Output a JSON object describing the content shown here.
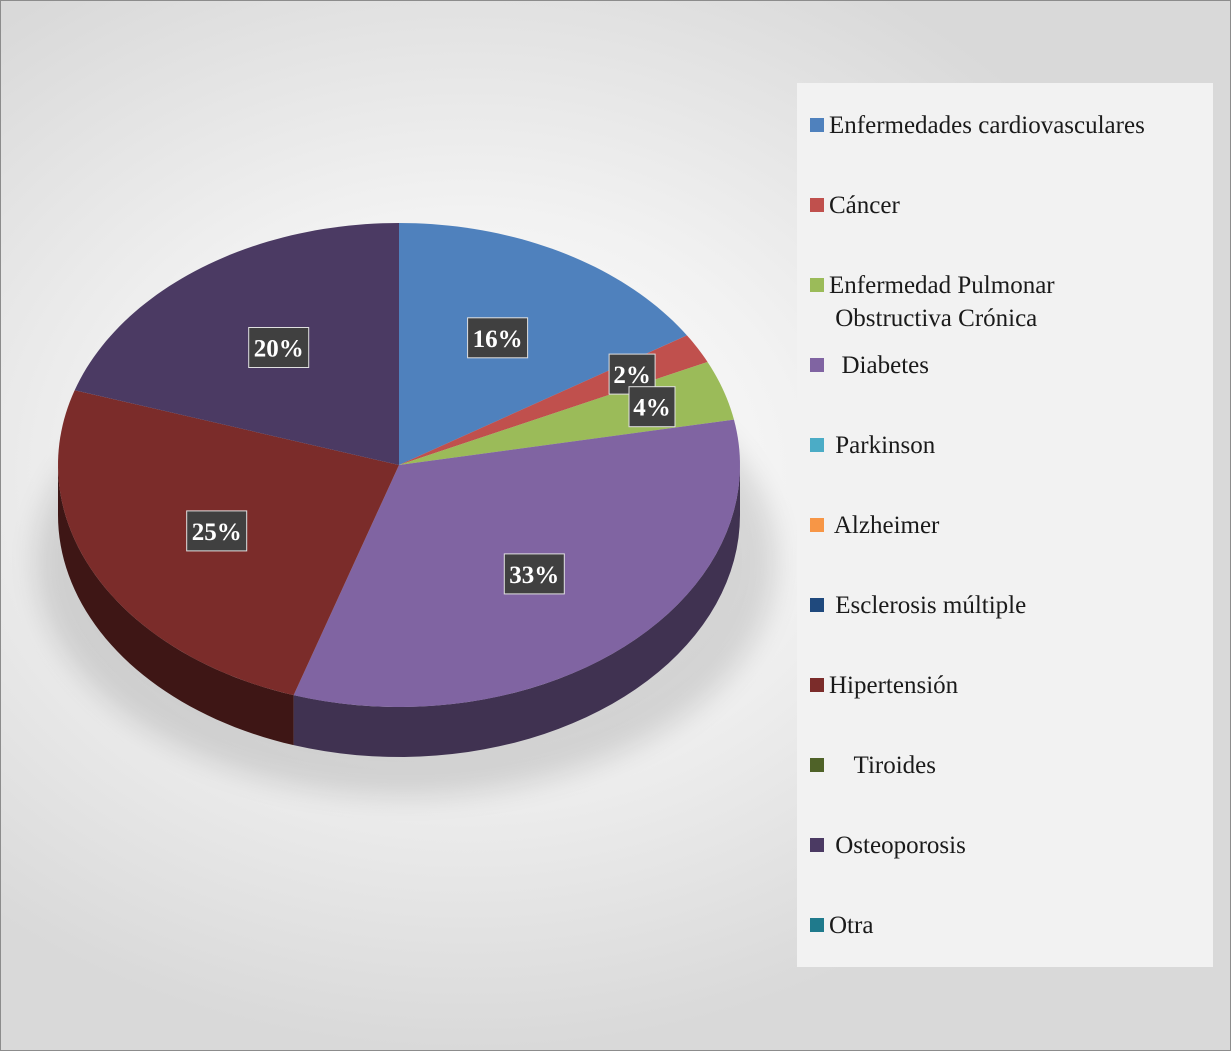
{
  "chart_data": {
    "type": "pie",
    "title": "",
    "slices": [
      {
        "label": "Enfermedades cardiovasculares",
        "value": 16,
        "display": "16%",
        "color": "#4F81BD"
      },
      {
        "label": "Cáncer",
        "value": 2,
        "display": "2%",
        "color": "#C0504D"
      },
      {
        "label": "Enfermedad Pulmonar\n Obstructiva Crónica",
        "value": 4,
        "display": "4%",
        "color": "#9BBB59"
      },
      {
        "label": "  Diabetes",
        "value": 33,
        "display": "33%",
        "color": "#8064A2"
      },
      {
        "label": " Parkinson",
        "value": 0,
        "display": "",
        "color": "#4BACC6"
      },
      {
        "label": " Alzheimer",
        "value": 0,
        "display": "",
        "color": "#F79646"
      },
      {
        "label": " Esclerosis múltiple",
        "value": 0,
        "display": "",
        "color": "#1F497D"
      },
      {
        "label": "Hipertensión",
        "value": 25,
        "display": "25%",
        "color": "#7B2C2A"
      },
      {
        "label": "    Tiroides",
        "value": 0,
        "display": "",
        "color": "#4F6228"
      },
      {
        "label": " Osteoporosis",
        "value": 20,
        "display": "20%",
        "color": "#4B3A63"
      },
      {
        "label": "Otra",
        "value": 0,
        "display": "",
        "color": "#1F7A8C"
      }
    ],
    "legend_position": "right"
  }
}
